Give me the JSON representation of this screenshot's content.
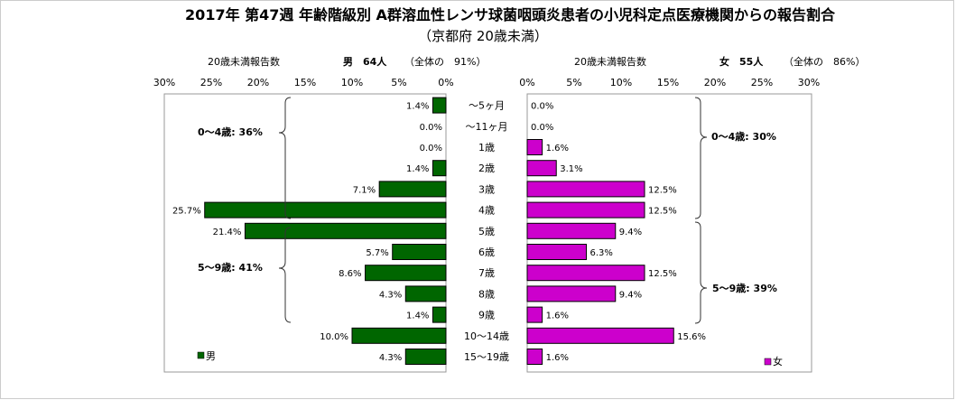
{
  "chart_data": {
    "type": "bar",
    "title": "2017年 第47週 年齢階級別 A群溶血性レンサ球菌咽頭炎患者の小児科定点医療機関からの報告割合",
    "subtitle": "（京都府 20歳未満）",
    "categories": [
      "～5ヶ月",
      "～11ヶ月",
      "1歳",
      "2歳",
      "3歳",
      "4歳",
      "5歳",
      "6歳",
      "7歳",
      "8歳",
      "9歳",
      "10～14歳",
      "15～19歳"
    ],
    "series": [
      {
        "name": "男",
        "color": "#006600",
        "values": [
          1.4,
          0.0,
          0.0,
          1.4,
          7.1,
          25.7,
          21.4,
          5.7,
          8.6,
          4.3,
          1.4,
          10.0,
          4.3
        ],
        "labels": [
          "1.4%",
          "0.0%",
          "0.0%",
          "1.4%",
          "7.1%",
          "25.7%",
          "21.4%",
          "5.7%",
          "8.6%",
          "4.3%",
          "1.4%",
          "10.0%",
          "4.3%"
        ]
      },
      {
        "name": "女",
        "color": "#cc00cc",
        "values": [
          0.0,
          0.0,
          1.6,
          3.1,
          12.5,
          12.5,
          9.4,
          6.3,
          12.5,
          9.4,
          1.6,
          15.6,
          1.6
        ],
        "labels": [
          "0.0%",
          "0.0%",
          "1.6%",
          "3.1%",
          "12.5%",
          "12.5%",
          "9.4%",
          "6.3%",
          "12.5%",
          "9.4%",
          "1.6%",
          "15.6%",
          "1.6%"
        ]
      }
    ],
    "xlim": [
      0,
      30
    ],
    "male_ticks": [
      "30%",
      "25%",
      "20%",
      "15%",
      "10%",
      "5%",
      "0%"
    ],
    "female_ticks": [
      "0%",
      "5%",
      "10%",
      "15%",
      "20%",
      "25%",
      "30%"
    ],
    "male_header": {
      "label": "20歳未満報告数",
      "count": "男　64人",
      "note": "（全体の　91%）"
    },
    "female_header": {
      "label": "20歳未満報告数",
      "count": "女　55人",
      "note": "（全体の　86%）"
    },
    "groups": {
      "male_0_4": "0～4歳: 36%",
      "male_5_9": "5～9歳: 41%",
      "female_0_4": "0～4歳: 30%",
      "female_5_9": "5～9歳: 39%"
    },
    "legend": {
      "male": "男",
      "female": "女"
    },
    "grid": false
  }
}
